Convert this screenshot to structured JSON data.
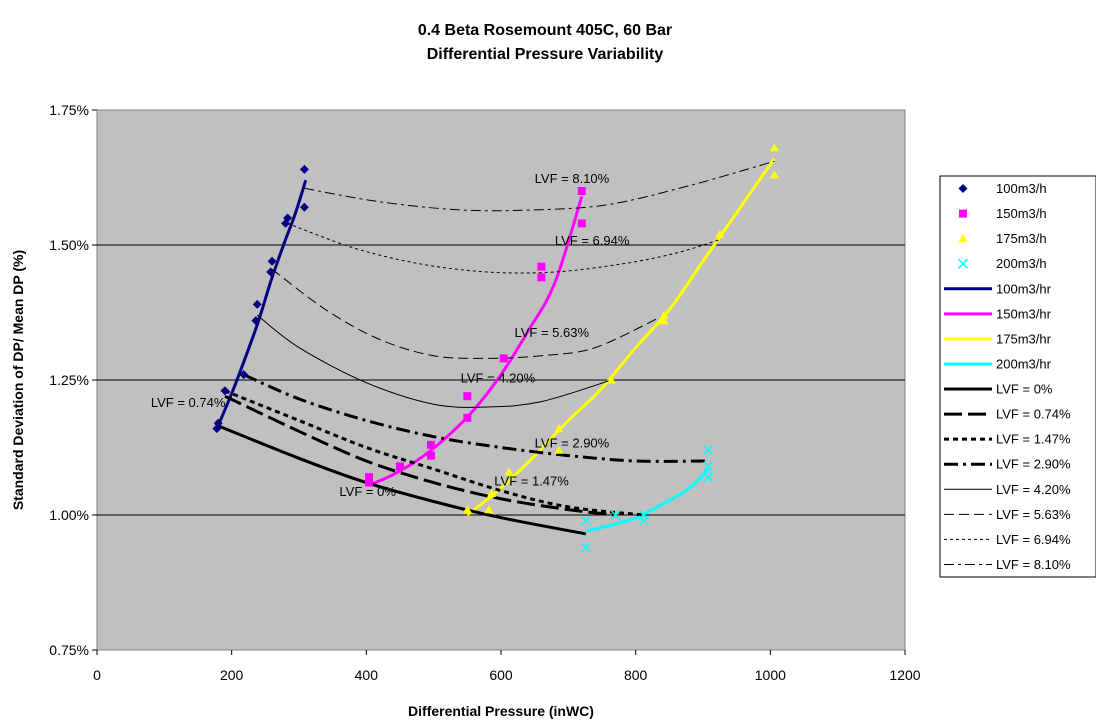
{
  "chart_data": {
    "type": "scatter",
    "title": "0.4 Beta Rosemount 405C, 60 Bar",
    "subtitle": "Differential Pressure Variability",
    "xlabel": "Differential Pressure (inWC)",
    "ylabel": "Standard Deviation of DP/ Mean DP (%)",
    "xlim": [
      0,
      1200
    ],
    "ylim": [
      0.75,
      1.75
    ],
    "x_ticks": [
      0,
      200,
      400,
      600,
      800,
      1000,
      1200
    ],
    "x_tick_labels": [
      "0",
      "200",
      "400",
      "600",
      "800",
      "1000",
      "1200"
    ],
    "y_ticks": [
      0.75,
      1.0,
      1.25,
      1.5,
      1.75
    ],
    "y_tick_labels": [
      "0.75%",
      "1.00%",
      "1.25%",
      "1.50%",
      "1.75%"
    ],
    "plot_background": "#c0c0c0",
    "grid": "horizontal",
    "legend_position": "right",
    "marker_series": [
      {
        "name": "100m3/h",
        "marker": "diamond",
        "color": "#000080",
        "points": [
          [
            178,
            1.16
          ],
          [
            180,
            1.17
          ],
          [
            190,
            1.23
          ],
          [
            218,
            1.26
          ],
          [
            236,
            1.36
          ],
          [
            238,
            1.39
          ],
          [
            258,
            1.45
          ],
          [
            260,
            1.47
          ],
          [
            280,
            1.54
          ],
          [
            283,
            1.55
          ],
          [
            308,
            1.57
          ],
          [
            308,
            1.64
          ]
        ]
      },
      {
        "name": "150m3/h",
        "marker": "square",
        "color": "#ff00ff",
        "points": [
          [
            404,
            1.06
          ],
          [
            404,
            1.07
          ],
          [
            450,
            1.09
          ],
          [
            496,
            1.11
          ],
          [
            496,
            1.13
          ],
          [
            550,
            1.18
          ],
          [
            550,
            1.22
          ],
          [
            604,
            1.29
          ],
          [
            660,
            1.44
          ],
          [
            660,
            1.46
          ],
          [
            720,
            1.54
          ],
          [
            720,
            1.6
          ]
        ]
      },
      {
        "name": "175m3/h",
        "marker": "triangle",
        "color": "#ffff00",
        "points": [
          [
            550,
            1.01
          ],
          [
            582,
            1.01
          ],
          [
            586,
            1.04
          ],
          [
            612,
            1.08
          ],
          [
            686,
            1.12
          ],
          [
            686,
            1.16
          ],
          [
            764,
            1.25
          ],
          [
            842,
            1.36
          ],
          [
            842,
            1.37
          ],
          [
            925,
            1.52
          ],
          [
            1006,
            1.63
          ],
          [
            1006,
            1.68
          ]
        ]
      },
      {
        "name": "200m3/h",
        "marker": "x",
        "color": "#00ffff",
        "points": [
          [
            726,
            0.94
          ],
          [
            726,
            0.99
          ],
          [
            770,
            1.0
          ],
          [
            812,
            0.99
          ],
          [
            812,
            1.0
          ],
          [
            908,
            1.07
          ],
          [
            908,
            1.09
          ],
          [
            908,
            1.12
          ]
        ]
      }
    ],
    "fit_series": [
      {
        "name": "100m3/hr",
        "color": "#000080",
        "width": 3,
        "dash": "",
        "points": [
          [
            178,
            1.16
          ],
          [
            200,
            1.225
          ],
          [
            220,
            1.29
          ],
          [
            240,
            1.36
          ],
          [
            260,
            1.44
          ],
          [
            280,
            1.51
          ],
          [
            295,
            1.56
          ],
          [
            310,
            1.62
          ]
        ]
      },
      {
        "name": "150m3/hr",
        "color": "#ff00ff",
        "width": 3,
        "dash": "",
        "points": [
          [
            404,
            1.055
          ],
          [
            440,
            1.075
          ],
          [
            480,
            1.105
          ],
          [
            520,
            1.145
          ],
          [
            560,
            1.195
          ],
          [
            600,
            1.26
          ],
          [
            640,
            1.34
          ],
          [
            680,
            1.43
          ],
          [
            720,
            1.59
          ]
        ]
      },
      {
        "name": "175m3/hr",
        "color": "#ffff00",
        "width": 3,
        "dash": "",
        "points": [
          [
            550,
            1.0
          ],
          [
            600,
            1.05
          ],
          [
            650,
            1.11
          ],
          [
            700,
            1.175
          ],
          [
            750,
            1.235
          ],
          [
            800,
            1.31
          ],
          [
            850,
            1.38
          ],
          [
            900,
            1.47
          ],
          [
            950,
            1.56
          ],
          [
            1006,
            1.66
          ]
        ]
      },
      {
        "name": "200m3/hr",
        "color": "#00ffff",
        "width": 3,
        "dash": "",
        "points": [
          [
            726,
            0.97
          ],
          [
            760,
            0.98
          ],
          [
            800,
            0.995
          ],
          [
            840,
            1.02
          ],
          [
            880,
            1.05
          ],
          [
            908,
            1.085
          ]
        ]
      },
      {
        "name": "LVF = 0%",
        "color": "#000000",
        "width": 3,
        "dash": "",
        "points": [
          [
            180,
            1.165
          ],
          [
            300,
            1.105
          ],
          [
            400,
            1.06
          ],
          [
            500,
            1.025
          ],
          [
            600,
            0.995
          ],
          [
            726,
            0.965
          ]
        ]
      },
      {
        "name": "LVF = 0.74%",
        "color": "#000000",
        "width": 3,
        "dash": "18,6",
        "points": [
          [
            190,
            1.22
          ],
          [
            300,
            1.155
          ],
          [
            400,
            1.1
          ],
          [
            500,
            1.06
          ],
          [
            600,
            1.03
          ],
          [
            700,
            1.01
          ],
          [
            770,
            1.0
          ]
        ]
      },
      {
        "name": "LVF = 1.47%",
        "color": "#000000",
        "width": 3,
        "dash": "5,4",
        "points": [
          [
            190,
            1.23
          ],
          [
            300,
            1.175
          ],
          [
            400,
            1.125
          ],
          [
            500,
            1.085
          ],
          [
            600,
            1.045
          ],
          [
            700,
            1.015
          ],
          [
            812,
            1.0
          ]
        ]
      },
      {
        "name": "LVF = 2.90%",
        "color": "#000000",
        "width": 3,
        "dash": "14,5,3,5",
        "points": [
          [
            218,
            1.26
          ],
          [
            300,
            1.215
          ],
          [
            400,
            1.175
          ],
          [
            500,
            1.145
          ],
          [
            600,
            1.125
          ],
          [
            700,
            1.11
          ],
          [
            800,
            1.1
          ],
          [
            908,
            1.1
          ]
        ]
      },
      {
        "name": "LVF = 4.20%",
        "color": "#000000",
        "width": 1,
        "dash": "",
        "points": [
          [
            238,
            1.37
          ],
          [
            300,
            1.31
          ],
          [
            400,
            1.245
          ],
          [
            500,
            1.205
          ],
          [
            580,
            1.2
          ],
          [
            660,
            1.21
          ],
          [
            764,
            1.25
          ]
        ]
      },
      {
        "name": "LVF = 5.63%",
        "color": "#000000",
        "width": 1,
        "dash": "10,5",
        "points": [
          [
            260,
            1.455
          ],
          [
            340,
            1.38
          ],
          [
            420,
            1.325
          ],
          [
            500,
            1.295
          ],
          [
            580,
            1.29
          ],
          [
            660,
            1.295
          ],
          [
            740,
            1.31
          ],
          [
            842,
            1.37
          ]
        ]
      },
      {
        "name": "LVF = 6.94%",
        "color": "#000000",
        "width": 1,
        "dash": "3,3",
        "points": [
          [
            283,
            1.54
          ],
          [
            380,
            1.495
          ],
          [
            480,
            1.465
          ],
          [
            580,
            1.45
          ],
          [
            680,
            1.45
          ],
          [
            780,
            1.465
          ],
          [
            860,
            1.485
          ],
          [
            925,
            1.51
          ]
        ]
      },
      {
        "name": "LVF = 8.10%",
        "color": "#000000",
        "width": 1,
        "dash": "10,4,3,4",
        "points": [
          [
            308,
            1.605
          ],
          [
            420,
            1.58
          ],
          [
            540,
            1.565
          ],
          [
            650,
            1.565
          ],
          [
            760,
            1.575
          ],
          [
            880,
            1.61
          ],
          [
            1006,
            1.655
          ]
        ]
      }
    ],
    "annotations": [
      {
        "text": "LVF = 8.10%",
        "x": 650,
        "y": 1.615
      },
      {
        "text": "LVF = 6.94%",
        "x": 680,
        "y": 1.5
      },
      {
        "text": "LVF = 5.63%",
        "x": 620,
        "y": 1.33
      },
      {
        "text": "LVF = 4.20%",
        "x": 540,
        "y": 1.245
      },
      {
        "text": "LVF = 2.90%",
        "x": 650,
        "y": 1.125
      },
      {
        "text": "LVF = 1.47%",
        "x": 590,
        "y": 1.055
      },
      {
        "text": "LVF = 0.74%",
        "x": 80,
        "y": 1.2
      },
      {
        "text": "LVF = 0%",
        "x": 360,
        "y": 1.035
      }
    ]
  }
}
